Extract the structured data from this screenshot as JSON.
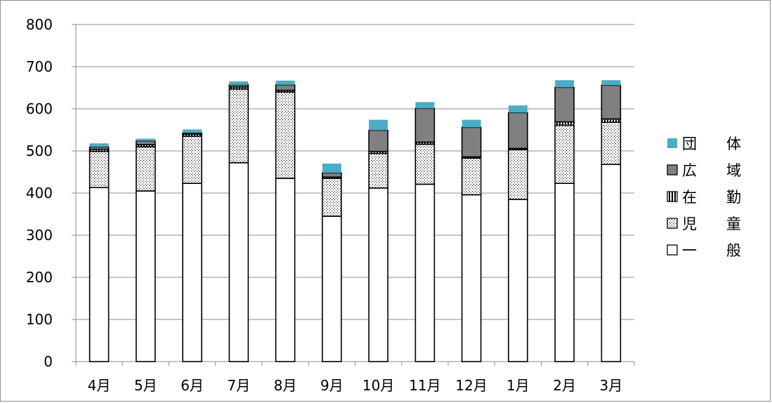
{
  "chart_data": {
    "type": "bar",
    "stacked": true,
    "title": "",
    "xlabel": "",
    "ylabel": "",
    "ylim": [
      0,
      800
    ],
    "yticks": [
      0,
      100,
      200,
      300,
      400,
      500,
      600,
      700,
      800
    ],
    "grid": true,
    "legend_position": "right",
    "categories": [
      "4月",
      "5月",
      "6月",
      "7月",
      "8月",
      "9月",
      "10月",
      "11月",
      "12月",
      "1月",
      "2月",
      "3月"
    ],
    "series": [
      {
        "name": "一　　般",
        "pattern": "white",
        "color": "#ffffff",
        "values": [
          413,
          405,
          423,
          472,
          435,
          345,
          412,
          421,
          396,
          385,
          423,
          468
        ]
      },
      {
        "name": "児　　童",
        "pattern": "dots",
        "color": "#ffffff",
        "values": [
          86,
          105,
          112,
          175,
          205,
          90,
          82,
          95,
          87,
          118,
          138,
          100
        ]
      },
      {
        "name": "在　　勤",
        "pattern": "vertical-stripes",
        "color": "#000000",
        "values": [
          5,
          5,
          5,
          5,
          4,
          3,
          5,
          5,
          3,
          3,
          8,
          8
        ]
      },
      {
        "name": "広　　域",
        "pattern": "solid",
        "color": "#808080",
        "values": [
          6,
          9,
          3,
          5,
          13,
          10,
          50,
          80,
          70,
          85,
          82,
          80
        ]
      },
      {
        "name": "団　　体",
        "pattern": "solid",
        "color": "#4bacc6",
        "values": [
          8,
          5,
          8,
          8,
          10,
          22,
          25,
          15,
          18,
          17,
          17,
          12
        ]
      }
    ]
  }
}
